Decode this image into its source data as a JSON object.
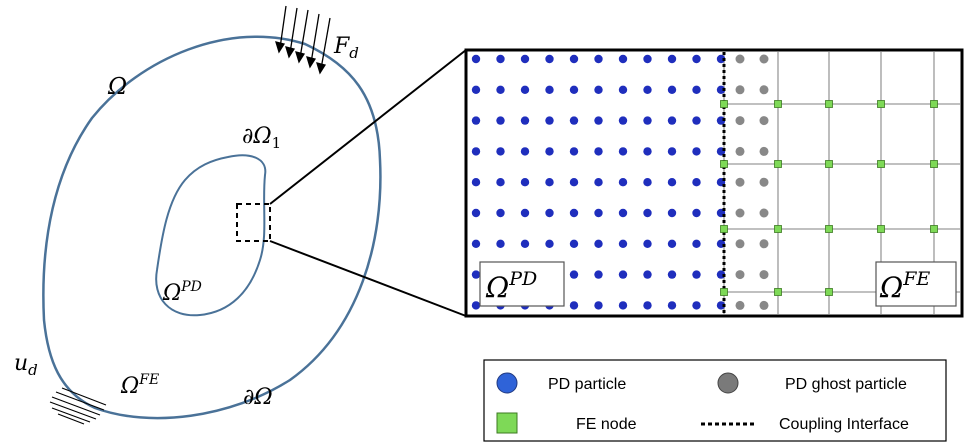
{
  "labels": {
    "omega": "Ω",
    "force": "F",
    "force_sub": "d",
    "inner_boundary": "∂Ω",
    "inner_boundary_sub": "1",
    "omega_pd_base": "Ω",
    "omega_pd_sup": "PD",
    "omega_fe_base": "Ω",
    "omega_fe_sup": "FE",
    "displacement": "u",
    "displacement_sub": "d",
    "outer_boundary": "∂Ω"
  },
  "zoom": {
    "pd_label_base": "Ω",
    "pd_label_sup": "PD",
    "fe_label_base": "Ω",
    "fe_label_sup": "FE"
  },
  "legend": {
    "pd_particle": "PD particle",
    "pd_ghost_particle": "PD ghost particle",
    "fe_node": "FE node",
    "coupling_interface": "Coupling Interface"
  },
  "colors": {
    "domain_outline": "#4a7298",
    "pd_particle": "#1f2ebd",
    "ghost_particle": "#888888",
    "fe_node": "#7ed957",
    "grid": "#9a9a9a"
  }
}
